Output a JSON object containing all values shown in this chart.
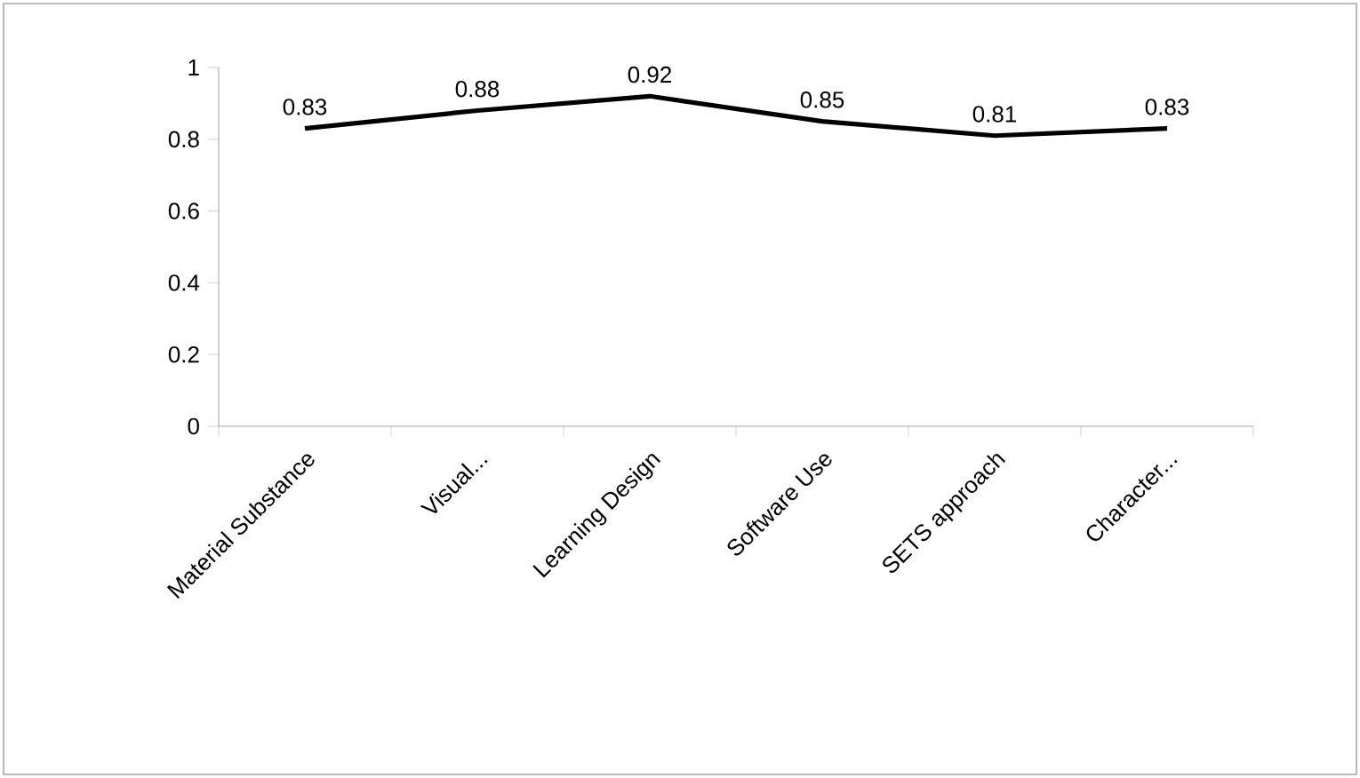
{
  "chart_data": {
    "type": "line",
    "categories": [
      "Material Substance",
      "Visual...",
      "Learning Design",
      "Software Use",
      "SETS approach",
      "Character..."
    ],
    "values": [
      0.83,
      0.88,
      0.92,
      0.85,
      0.81,
      0.83
    ],
    "color": "#000000",
    "ylim": [
      0,
      1
    ],
    "yticks": [
      0,
      0.2,
      0.4,
      0.6,
      0.8,
      1
    ],
    "data_labels": true,
    "grid": false,
    "marker": "none",
    "line_style": "solid"
  }
}
